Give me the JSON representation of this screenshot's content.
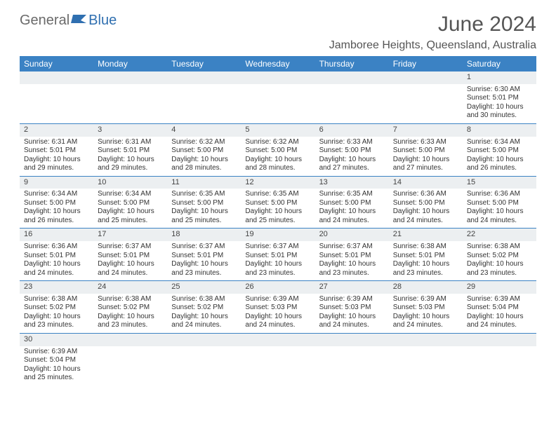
{
  "logo": {
    "text1": "General",
    "text2": "Blue"
  },
  "title": "June 2024",
  "subtitle": "Jamboree Heights, Queensland, Australia",
  "colors": {
    "header_bg": "#3b82c4",
    "header_text": "#ffffff",
    "daynum_bg": "#eceff1",
    "border": "#3b82c4",
    "text": "#333333",
    "title": "#555555"
  },
  "weekdays": [
    "Sunday",
    "Monday",
    "Tuesday",
    "Wednesday",
    "Thursday",
    "Friday",
    "Saturday"
  ],
  "weeks": [
    [
      {
        "num": "",
        "lines": []
      },
      {
        "num": "",
        "lines": []
      },
      {
        "num": "",
        "lines": []
      },
      {
        "num": "",
        "lines": []
      },
      {
        "num": "",
        "lines": []
      },
      {
        "num": "",
        "lines": []
      },
      {
        "num": "1",
        "lines": [
          "Sunrise: 6:30 AM",
          "Sunset: 5:01 PM",
          "Daylight: 10 hours and 30 minutes."
        ]
      }
    ],
    [
      {
        "num": "2",
        "lines": [
          "Sunrise: 6:31 AM",
          "Sunset: 5:01 PM",
          "Daylight: 10 hours and 29 minutes."
        ]
      },
      {
        "num": "3",
        "lines": [
          "Sunrise: 6:31 AM",
          "Sunset: 5:01 PM",
          "Daylight: 10 hours and 29 minutes."
        ]
      },
      {
        "num": "4",
        "lines": [
          "Sunrise: 6:32 AM",
          "Sunset: 5:00 PM",
          "Daylight: 10 hours and 28 minutes."
        ]
      },
      {
        "num": "5",
        "lines": [
          "Sunrise: 6:32 AM",
          "Sunset: 5:00 PM",
          "Daylight: 10 hours and 28 minutes."
        ]
      },
      {
        "num": "6",
        "lines": [
          "Sunrise: 6:33 AM",
          "Sunset: 5:00 PM",
          "Daylight: 10 hours and 27 minutes."
        ]
      },
      {
        "num": "7",
        "lines": [
          "Sunrise: 6:33 AM",
          "Sunset: 5:00 PM",
          "Daylight: 10 hours and 27 minutes."
        ]
      },
      {
        "num": "8",
        "lines": [
          "Sunrise: 6:34 AM",
          "Sunset: 5:00 PM",
          "Daylight: 10 hours and 26 minutes."
        ]
      }
    ],
    [
      {
        "num": "9",
        "lines": [
          "Sunrise: 6:34 AM",
          "Sunset: 5:00 PM",
          "Daylight: 10 hours and 26 minutes."
        ]
      },
      {
        "num": "10",
        "lines": [
          "Sunrise: 6:34 AM",
          "Sunset: 5:00 PM",
          "Daylight: 10 hours and 25 minutes."
        ]
      },
      {
        "num": "11",
        "lines": [
          "Sunrise: 6:35 AM",
          "Sunset: 5:00 PM",
          "Daylight: 10 hours and 25 minutes."
        ]
      },
      {
        "num": "12",
        "lines": [
          "Sunrise: 6:35 AM",
          "Sunset: 5:00 PM",
          "Daylight: 10 hours and 25 minutes."
        ]
      },
      {
        "num": "13",
        "lines": [
          "Sunrise: 6:35 AM",
          "Sunset: 5:00 PM",
          "Daylight: 10 hours and 24 minutes."
        ]
      },
      {
        "num": "14",
        "lines": [
          "Sunrise: 6:36 AM",
          "Sunset: 5:00 PM",
          "Daylight: 10 hours and 24 minutes."
        ]
      },
      {
        "num": "15",
        "lines": [
          "Sunrise: 6:36 AM",
          "Sunset: 5:00 PM",
          "Daylight: 10 hours and 24 minutes."
        ]
      }
    ],
    [
      {
        "num": "16",
        "lines": [
          "Sunrise: 6:36 AM",
          "Sunset: 5:01 PM",
          "Daylight: 10 hours and 24 minutes."
        ]
      },
      {
        "num": "17",
        "lines": [
          "Sunrise: 6:37 AM",
          "Sunset: 5:01 PM",
          "Daylight: 10 hours and 24 minutes."
        ]
      },
      {
        "num": "18",
        "lines": [
          "Sunrise: 6:37 AM",
          "Sunset: 5:01 PM",
          "Daylight: 10 hours and 23 minutes."
        ]
      },
      {
        "num": "19",
        "lines": [
          "Sunrise: 6:37 AM",
          "Sunset: 5:01 PM",
          "Daylight: 10 hours and 23 minutes."
        ]
      },
      {
        "num": "20",
        "lines": [
          "Sunrise: 6:37 AM",
          "Sunset: 5:01 PM",
          "Daylight: 10 hours and 23 minutes."
        ]
      },
      {
        "num": "21",
        "lines": [
          "Sunrise: 6:38 AM",
          "Sunset: 5:01 PM",
          "Daylight: 10 hours and 23 minutes."
        ]
      },
      {
        "num": "22",
        "lines": [
          "Sunrise: 6:38 AM",
          "Sunset: 5:02 PM",
          "Daylight: 10 hours and 23 minutes."
        ]
      }
    ],
    [
      {
        "num": "23",
        "lines": [
          "Sunrise: 6:38 AM",
          "Sunset: 5:02 PM",
          "Daylight: 10 hours and 23 minutes."
        ]
      },
      {
        "num": "24",
        "lines": [
          "Sunrise: 6:38 AM",
          "Sunset: 5:02 PM",
          "Daylight: 10 hours and 23 minutes."
        ]
      },
      {
        "num": "25",
        "lines": [
          "Sunrise: 6:38 AM",
          "Sunset: 5:02 PM",
          "Daylight: 10 hours and 24 minutes."
        ]
      },
      {
        "num": "26",
        "lines": [
          "Sunrise: 6:39 AM",
          "Sunset: 5:03 PM",
          "Daylight: 10 hours and 24 minutes."
        ]
      },
      {
        "num": "27",
        "lines": [
          "Sunrise: 6:39 AM",
          "Sunset: 5:03 PM",
          "Daylight: 10 hours and 24 minutes."
        ]
      },
      {
        "num": "28",
        "lines": [
          "Sunrise: 6:39 AM",
          "Sunset: 5:03 PM",
          "Daylight: 10 hours and 24 minutes."
        ]
      },
      {
        "num": "29",
        "lines": [
          "Sunrise: 6:39 AM",
          "Sunset: 5:04 PM",
          "Daylight: 10 hours and 24 minutes."
        ]
      }
    ],
    [
      {
        "num": "30",
        "lines": [
          "Sunrise: 6:39 AM",
          "Sunset: 5:04 PM",
          "Daylight: 10 hours and 25 minutes."
        ]
      },
      {
        "num": "",
        "lines": []
      },
      {
        "num": "",
        "lines": []
      },
      {
        "num": "",
        "lines": []
      },
      {
        "num": "",
        "lines": []
      },
      {
        "num": "",
        "lines": []
      },
      {
        "num": "",
        "lines": []
      }
    ]
  ]
}
